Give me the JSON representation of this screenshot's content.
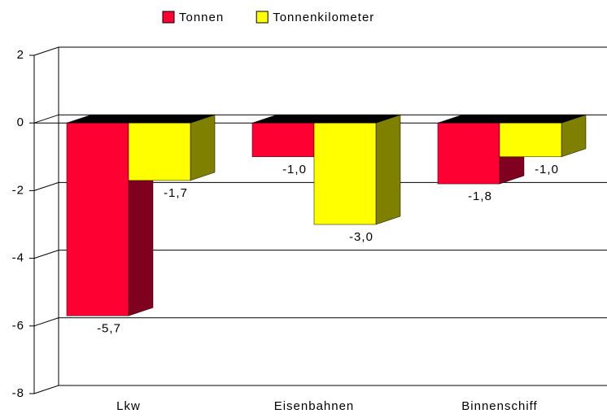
{
  "chart_data": {
    "type": "bar3d",
    "categories": [
      "Lkw",
      "Eisenbahnen",
      "Binnenschiff"
    ],
    "series": [
      {
        "name": "Tonnen",
        "color": "#ff0033",
        "side_color": "#800020",
        "values": [
          -5.7,
          -1.0,
          -1.8
        ],
        "value_labels": [
          "-5,7",
          "-1,0",
          "-1,8"
        ]
      },
      {
        "name": "Tonnenkilometer",
        "color": "#ffff00",
        "side_color": "#808000",
        "values": [
          -1.7,
          -3.0,
          -1.0
        ],
        "value_labels": [
          "-1,7",
          "-3,0",
          "-1,0"
        ]
      }
    ],
    "ylim": [
      -8,
      2
    ],
    "yticks": [
      2,
      0,
      -2,
      -4,
      -6,
      -8
    ],
    "grid": true,
    "legend": "top"
  }
}
